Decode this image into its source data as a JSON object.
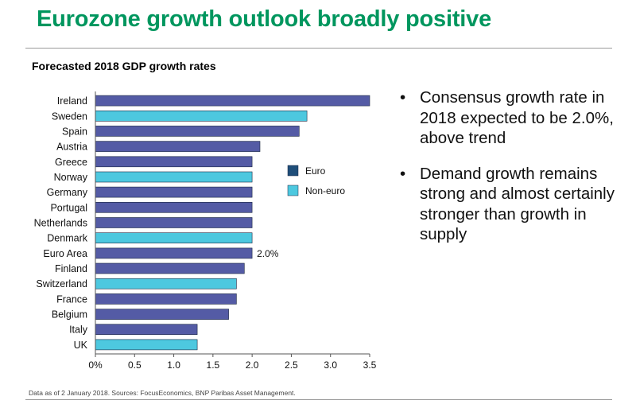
{
  "slide": {
    "title": "Eurozone growth outlook broadly positive",
    "source": "Data as of 2 January 2018. Sources: FocusEconomics, BNP Paribas Asset Management."
  },
  "bullets": [
    "Consensus growth rate in 2018 expected to be 2.0%, above trend",
    "Demand growth remains strong and almost certainly stronger than growth in supply"
  ],
  "chart_data": {
    "type": "bar",
    "orientation": "horizontal",
    "title": "Forecasted 2018 GDP growth rates",
    "categories": [
      "Ireland",
      "Sweden",
      "Spain",
      "Austria",
      "Greece",
      "Norway",
      "Germany",
      "Portugal",
      "Netherlands",
      "Denmark",
      "Euro Area",
      "Finland",
      "Switzerland",
      "France",
      "Belgium",
      "Italy",
      "UK"
    ],
    "values": [
      3.5,
      2.7,
      2.6,
      2.1,
      2.0,
      2.0,
      2.0,
      2.0,
      2.0,
      2.0,
      2.0,
      1.9,
      1.8,
      1.8,
      1.7,
      1.3,
      1.3
    ],
    "groups": [
      "Euro",
      "Non-euro",
      "Euro",
      "Euro",
      "Euro",
      "Non-euro",
      "Euro",
      "Euro",
      "Euro",
      "Non-euro",
      "Euro",
      "Euro",
      "Non-euro",
      "Euro",
      "Euro",
      "Euro",
      "Non-euro"
    ],
    "legend": [
      {
        "name": "Euro",
        "color": "#1f4e79"
      },
      {
        "name": "Non-euro",
        "color": "#4dc8df"
      }
    ],
    "bar_colors": {
      "Euro": "#545ba5",
      "Non-euro": "#4dc8df"
    },
    "annotation": {
      "category": "Euro Area",
      "text": "2.0%"
    },
    "xlim": [
      0,
      3.5
    ],
    "xticks": [
      0,
      0.5,
      1.0,
      1.5,
      2.0,
      2.5,
      3.0,
      3.5
    ],
    "xtick_labels": [
      "0%",
      "0.5",
      "1.0",
      "1.5",
      "2.0",
      "2.5",
      "3.0",
      "3.5"
    ],
    "grid": false,
    "legend_placement": "center-right"
  }
}
